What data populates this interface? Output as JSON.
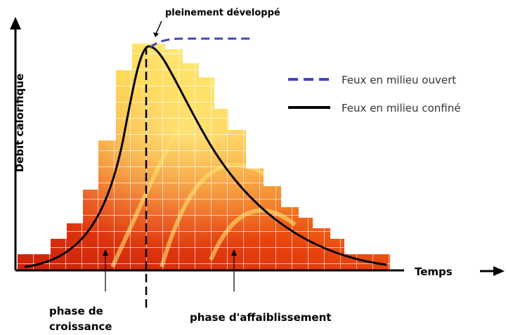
{
  "y_axis_label": "Débit calorifique",
  "x_axis_label": "Temps",
  "annotation": "pleinement développé",
  "legend": [
    "Feux en milieu ouvert",
    "Feux en milieu confiné"
  ],
  "phases": {
    "growth": [
      "phase de",
      "croissance"
    ],
    "decay": "phase d'affaiblissement"
  }
}
